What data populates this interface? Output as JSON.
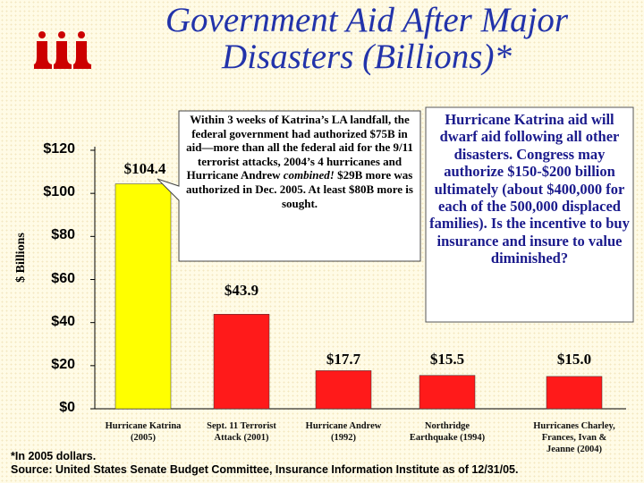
{
  "title": {
    "line1": "Government Aid After Major",
    "line2": "Disasters (Billions)*"
  },
  "colors": {
    "highlight_bar": "#ffff00",
    "bar": "#ff1a1a",
    "title": "#2233aa",
    "note_text": "#1a1a8c",
    "logo": "#cc0000"
  },
  "logo_icon": "iii-logo",
  "callout": {
    "parts": [
      "Within 3 weeks of Katrina’s LA landfall, the federal government had authorized $75B in aid—more than all the federal aid for the 9/11 terrorist attacks, 2004’s 4 hurricanes and Hurricane Andrew ",
      "combined!",
      " $29B more was authorized in Dec. 2005. At least $80B more is sought."
    ]
  },
  "note": "Hurricane Katrina aid will dwarf aid following all other disasters. Congress may authorize $150-$200 billion ultimately (about $400,000 for each of the 500,000 displaced families). Is the incentive to buy insurance and insure to value diminished?",
  "footnote": "*In 2005 dollars.",
  "source": "Source: United States Senate Budget Committee, Insurance Information Institute as of 12/31/05.",
  "chart_data": {
    "type": "bar",
    "ylabel": "$ Billions",
    "ylim": [
      0,
      120
    ],
    "yticks": [
      0,
      20,
      40,
      60,
      80,
      100,
      120
    ],
    "ytick_labels": [
      "$0",
      "$20",
      "$40",
      "$60",
      "$80",
      "$100",
      "$120"
    ],
    "grid": false,
    "categories": [
      [
        "Hurricane Katrina",
        "(2005)"
      ],
      [
        "Sept. 11 Terrorist",
        "Attack (2001)"
      ],
      [
        "Hurricane Andrew",
        "(1992)"
      ],
      [
        "Northridge",
        "Earthquake (1994)"
      ],
      [
        "Hurricanes Charley,",
        "Frances, Ivan &",
        "Jeanne (2004)"
      ]
    ],
    "values": [
      104.4,
      43.9,
      17.7,
      15.5,
      15.0
    ],
    "data_labels": [
      "$104.4",
      "$43.9",
      "$17.7",
      "$15.5",
      "$15.0"
    ],
    "bar_colors": [
      "#ffff00",
      "#ff1a1a",
      "#ff1a1a",
      "#ff1a1a",
      "#ff1a1a"
    ]
  }
}
